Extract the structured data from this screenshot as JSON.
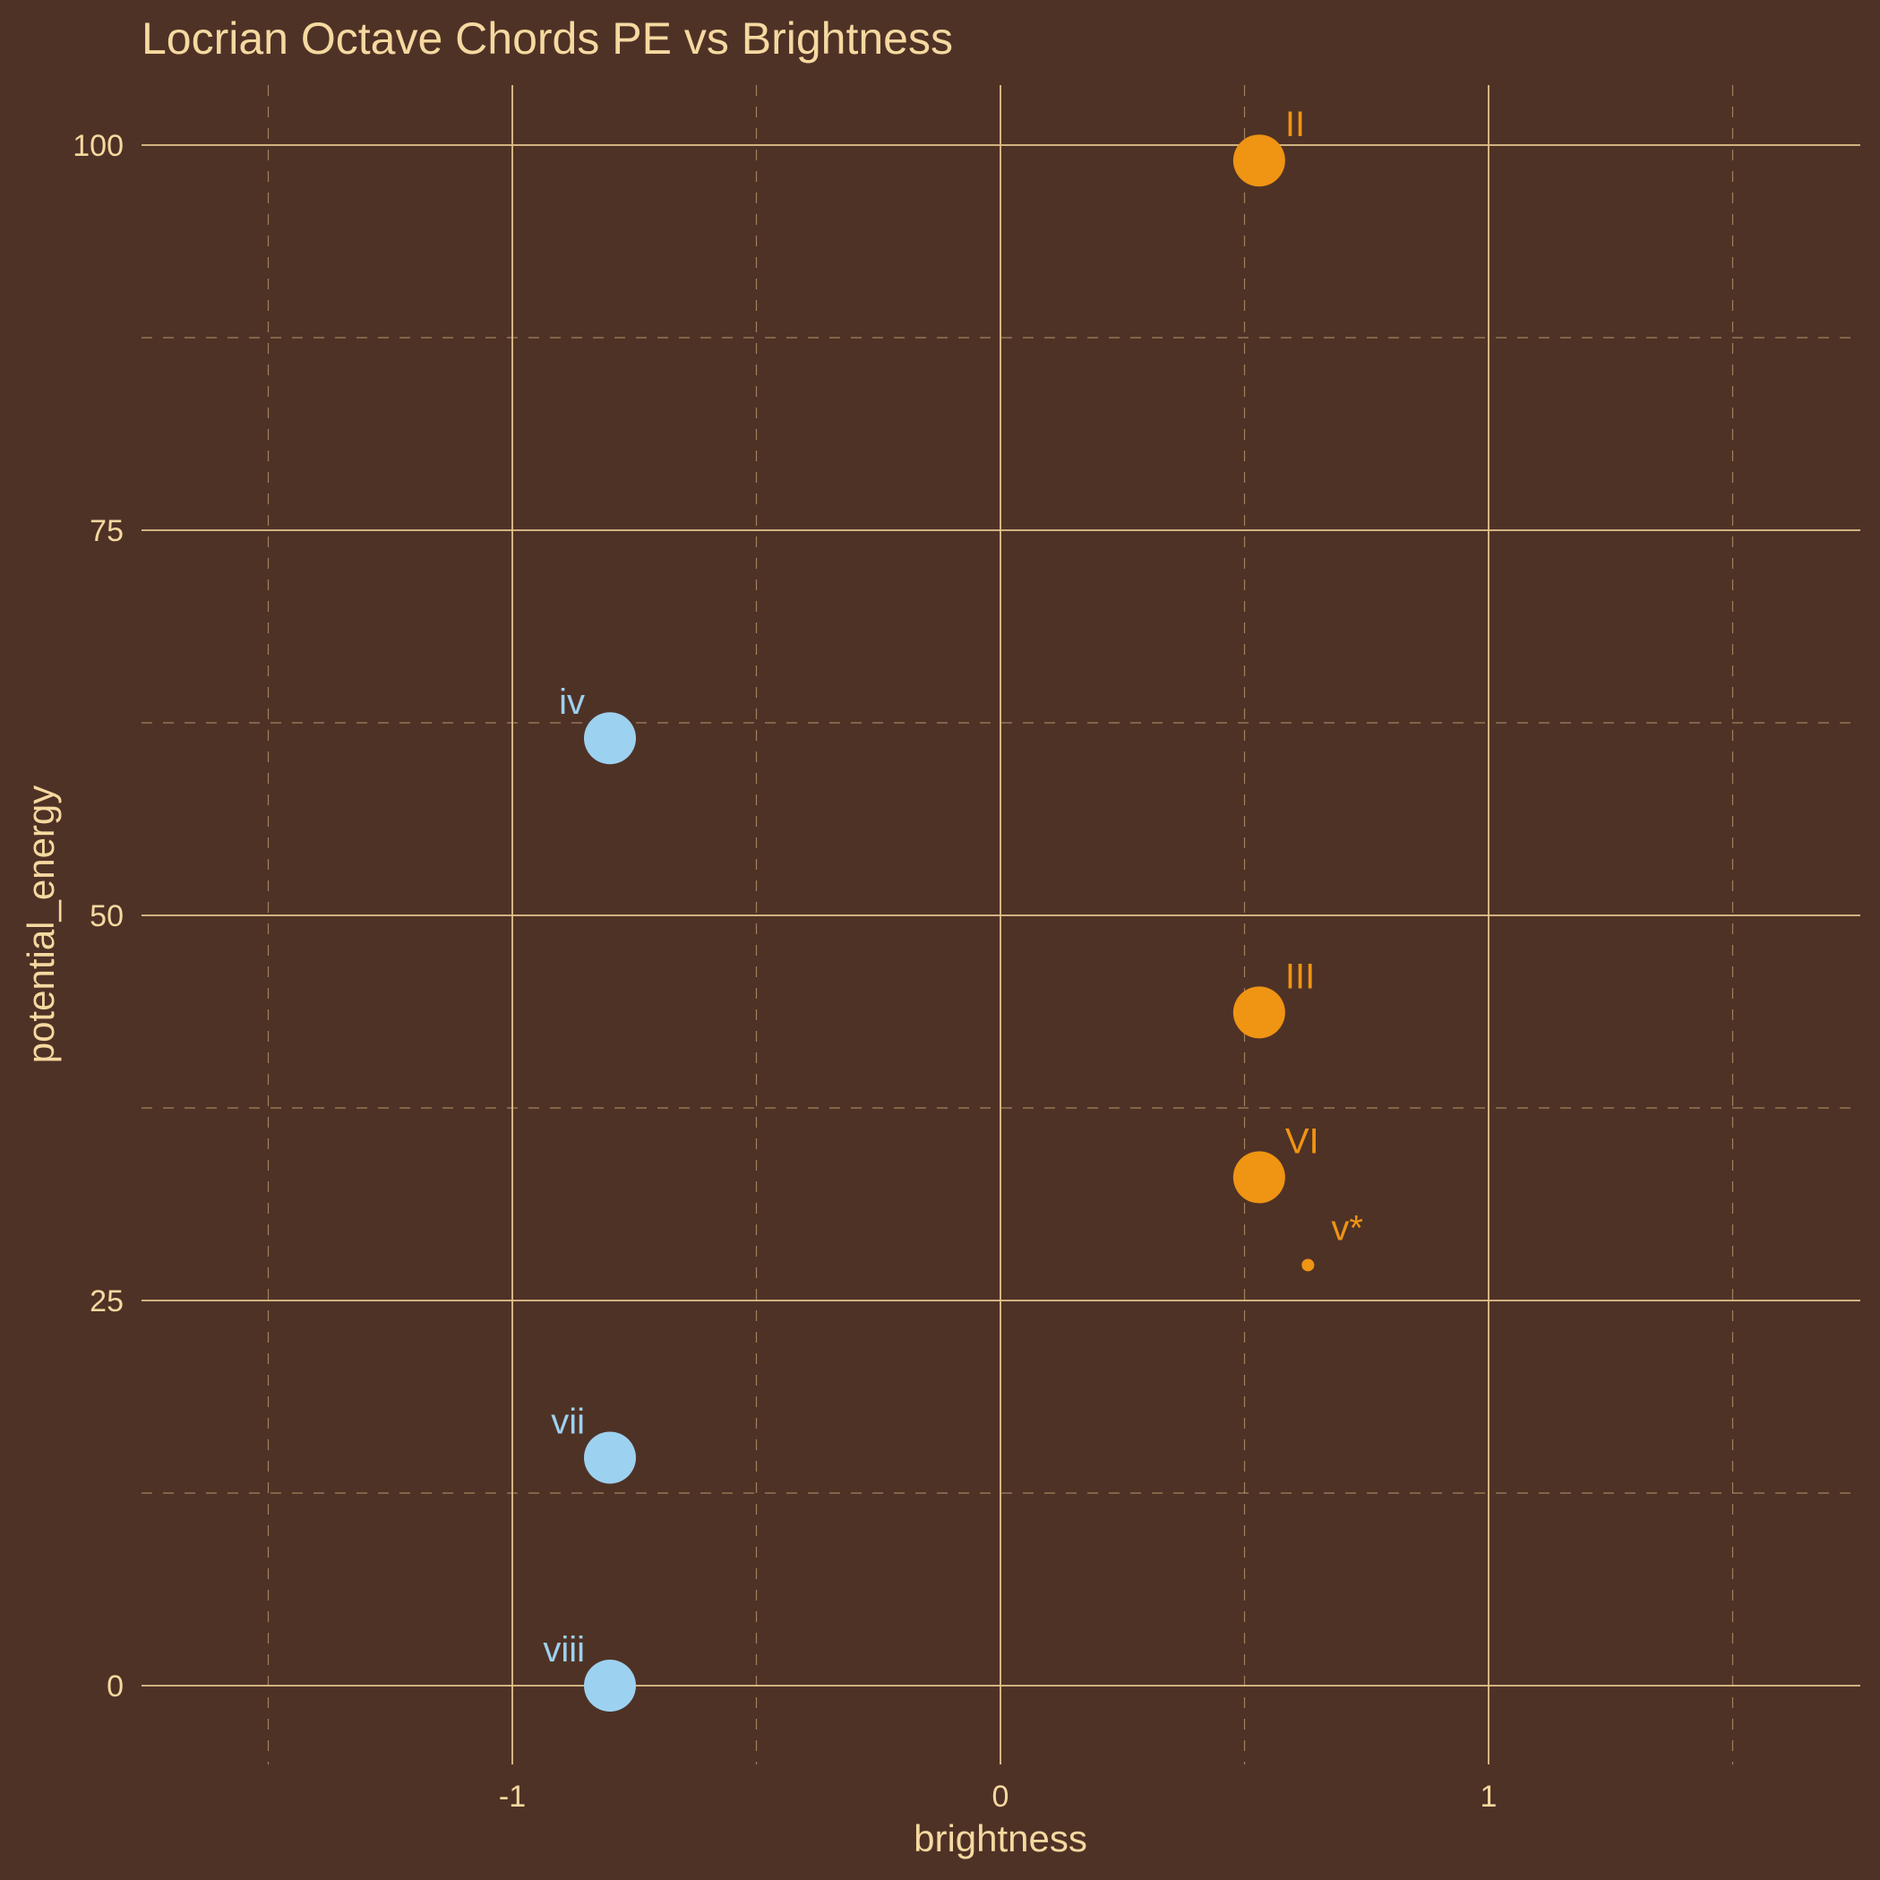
{
  "chart_data": {
    "type": "scatter",
    "title": "Locrian Octave Chords PE vs Brightness",
    "xlabel": "brightness",
    "ylabel": "potential_energy",
    "xlim": [
      -1.75,
      1.75
    ],
    "ylim": [
      -6,
      104
    ],
    "x_ticks": [
      -1,
      0,
      1
    ],
    "x_tick_labels": [
      "-1",
      "0",
      "1"
    ],
    "y_ticks": [
      0,
      25,
      50,
      75,
      100
    ],
    "y_tick_labels": [
      "0",
      "25",
      "50",
      "75",
      "100"
    ],
    "x_minor": [
      -1.5,
      -0.5,
      0.5,
      1.5
    ],
    "y_minor": [
      12.5,
      37.5,
      62.5,
      87.5
    ],
    "grid": true,
    "legend": "none",
    "colors": {
      "background": "#4f3226",
      "text": "#f5d9a0",
      "grid": "#e3c48d",
      "major": "#ef9413",
      "minor": "#9dd1f0"
    },
    "points": [
      {
        "label": "II",
        "x": 0.53,
        "y": 99,
        "group": "major",
        "size": "large"
      },
      {
        "label": "iv",
        "x": -0.8,
        "y": 61.5,
        "group": "minor",
        "size": "large"
      },
      {
        "label": "III",
        "x": 0.53,
        "y": 43.7,
        "group": "major",
        "size": "large"
      },
      {
        "label": "VI",
        "x": 0.53,
        "y": 33,
        "group": "major",
        "size": "large"
      },
      {
        "label": "v*",
        "x": 0.63,
        "y": 27.3,
        "group": "major",
        "size": "small"
      },
      {
        "label": "vii",
        "x": -0.8,
        "y": 14.8,
        "group": "minor",
        "size": "large"
      },
      {
        "label": "viii",
        "x": -0.8,
        "y": 0,
        "group": "minor",
        "size": "large"
      }
    ]
  }
}
